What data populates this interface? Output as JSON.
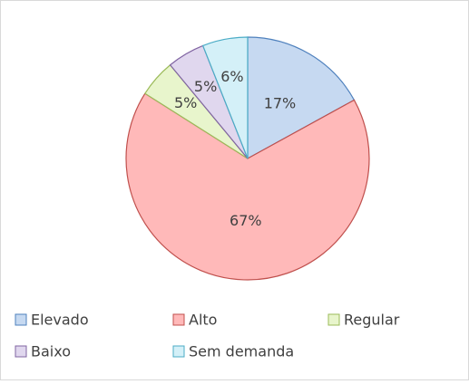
{
  "chart_data": {
    "type": "pie",
    "categories": [
      "Elevado",
      "Alto",
      "Regular",
      "Baixo",
      "Sem demanda"
    ],
    "values": [
      17,
      67,
      5,
      5,
      6
    ],
    "value_labels": [
      "17%",
      "67%",
      "5%",
      "5%",
      "6%"
    ],
    "colors": [
      "#c6d9f1",
      "#ffb9b9",
      "#e8f5cc",
      "#e0d7ee",
      "#d4f0f8"
    ],
    "edge_colors": [
      "#4f81bd",
      "#c0504d",
      "#9bbb59",
      "#8064a2",
      "#4bacc6"
    ],
    "legend": "bottom"
  }
}
